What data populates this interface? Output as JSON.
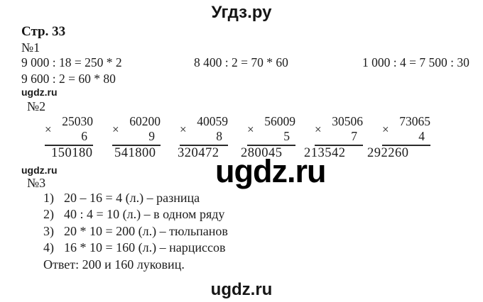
{
  "page": {
    "title": "Угдз.ру",
    "page_label": "Стр. 33",
    "watermark_small": "ugdz.ru",
    "watermark_big": "ugdz.ru",
    "footer": "ugdz.ru"
  },
  "task1": {
    "label": "№1",
    "equations_row1": [
      "9 000 : 18 = 250 * 2",
      "8 400 : 2 = 70 * 60",
      "1 000 : 4 = 7 500 : 30"
    ],
    "equations_row2": [
      "9 600 : 2 = 60 * 80"
    ]
  },
  "task2": {
    "label": "№2",
    "times_sign": "×",
    "problems": [
      {
        "multiplicand": "25030",
        "multiplier": "6",
        "product": "150180"
      },
      {
        "multiplicand": "60200",
        "multiplier": "9",
        "product": "541800"
      },
      {
        "multiplicand": "40059",
        "multiplier": "8",
        "product": "320472"
      },
      {
        "multiplicand": "56009",
        "multiplier": "5",
        "product": "280045"
      },
      {
        "multiplicand": "30506",
        "multiplier": "7",
        "product": "213542"
      },
      {
        "multiplicand": "73065",
        "multiplier": "4",
        "product": "292260"
      }
    ]
  },
  "task3": {
    "label": "№3",
    "steps": [
      {
        "num": "1)",
        "text": "20 – 16 = 4 (л.) – разница"
      },
      {
        "num": "2)",
        "text": "40 : 4 = 10 (л.) – в одном ряду"
      },
      {
        "num": "3)",
        "text": "20 * 10 = 200 (л.) – тюльпанов"
      },
      {
        "num": "4)",
        "text": "16 * 10 = 160 (л.) – нарциссов"
      }
    ],
    "answer": "Ответ: 200 и 160 луковиц."
  }
}
